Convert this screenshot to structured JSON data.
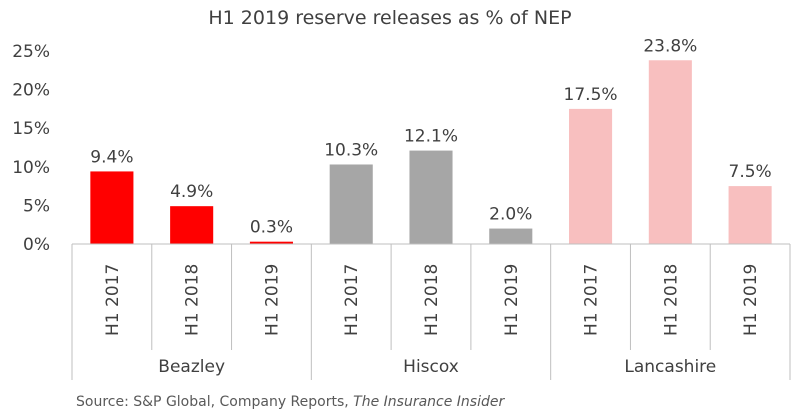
{
  "chart_data": {
    "type": "bar",
    "title": "H1 2019 reserve releases as % of NEP",
    "xlabel": "",
    "ylabel": "",
    "ylim": [
      0,
      25
    ],
    "yticks": [
      "0%",
      "5%",
      "10%",
      "15%",
      "20%",
      "25%"
    ],
    "grid": false,
    "groups": [
      {
        "name": "Beazley",
        "color": "#ff0000",
        "categories": [
          "H1 2017",
          "H1 2018",
          "H1 2019"
        ],
        "values": [
          9.4,
          4.9,
          0.3
        ],
        "labels": [
          "9.4%",
          "4.9%",
          "0.3%"
        ]
      },
      {
        "name": "Hiscox",
        "color": "#a6a6a6",
        "categories": [
          "H1 2017",
          "H1 2018",
          "H1 2019"
        ],
        "values": [
          10.3,
          12.1,
          2.0
        ],
        "labels": [
          "10.3%",
          "12.1%",
          "2.0%"
        ]
      },
      {
        "name": "Lancashire",
        "color": "#f8bfbf",
        "categories": [
          "H1 2017",
          "H1 2018",
          "H1 2019"
        ],
        "values": [
          17.5,
          23.8,
          7.5
        ],
        "labels": [
          "17.5%",
          "23.8%",
          "7.5%"
        ]
      }
    ]
  },
  "source": {
    "prefix": "Source: S&P Global, Company Reports, ",
    "italic": "The Insurance Insider"
  }
}
